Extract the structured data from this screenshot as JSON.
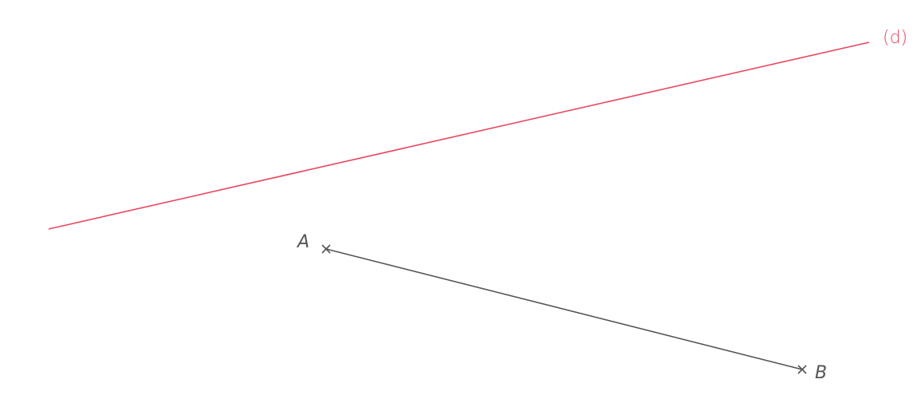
{
  "figure": {
    "line": {
      "label": "(d)",
      "color": "#e8475f"
    },
    "segment": {
      "color": "#555555",
      "point_a": {
        "label": "A"
      },
      "point_b": {
        "label": "B"
      }
    }
  }
}
